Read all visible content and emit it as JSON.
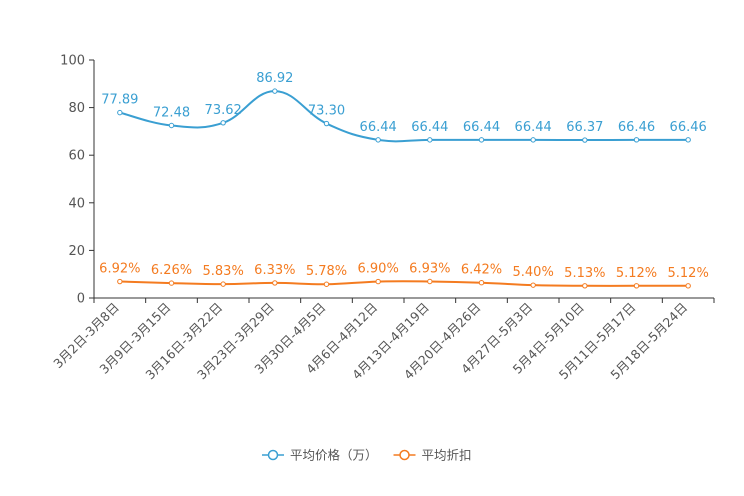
{
  "chart_data": {
    "type": "line",
    "categories": [
      "3月2日-3月8日",
      "3月9日-3月15日",
      "3月16日-3月22日",
      "3月23日-3月29日",
      "3月30日-4月5日",
      "4月6日-4月12日",
      "4月13日-4月19日",
      "4月20日-4月26日",
      "4月27日-5月3日",
      "5月4日-5月10日",
      "5月11日-5月17日",
      "5月18日-5月24日"
    ],
    "series": [
      {
        "name": "平均价格（万）",
        "color": "#3a9fd2",
        "values": [
          77.89,
          72.48,
          73.62,
          86.92,
          73.3,
          66.44,
          66.44,
          66.44,
          66.44,
          66.37,
          66.46,
          66.46
        ],
        "labels": [
          "77.89",
          "72.48",
          "73.62",
          "86.92",
          "73.30",
          "66.44",
          "66.44",
          "66.44",
          "66.44",
          "66.37",
          "66.46",
          "66.46"
        ]
      },
      {
        "name": "平均折扣",
        "color": "#f47b20",
        "values": [
          6.92,
          6.26,
          5.83,
          6.33,
          5.78,
          6.9,
          6.93,
          6.42,
          5.4,
          5.13,
          5.12,
          5.12
        ],
        "labels": [
          "6.92%",
          "6.26%",
          "5.83%",
          "6.33%",
          "5.78%",
          "6.90%",
          "6.93%",
          "6.42%",
          "5.40%",
          "5.13%",
          "5.12%",
          "5.12%"
        ]
      }
    ],
    "ylim": [
      0,
      100
    ],
    "yticks": [
      "0",
      "20",
      "40",
      "60",
      "80",
      "100"
    ],
    "legend_position": "bottom-center",
    "title": "",
    "xlabel": "",
    "ylabel": ""
  }
}
